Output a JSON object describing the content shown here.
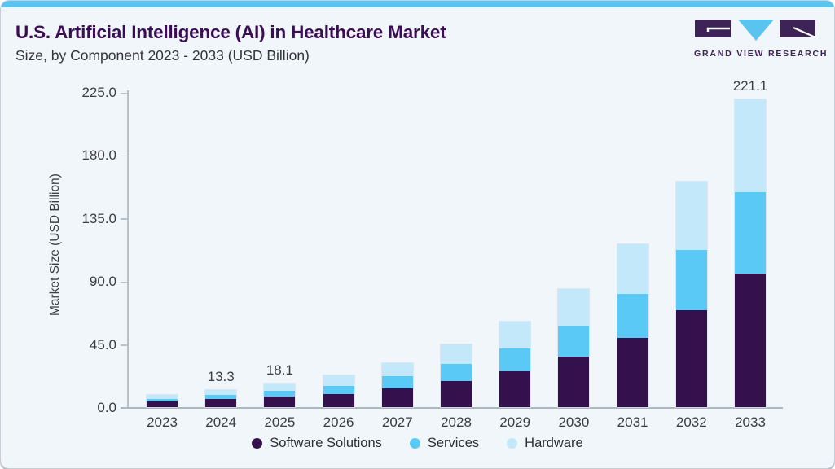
{
  "header": {
    "title": "U.S. Artificial Intelligence (AI) in Healthcare Market",
    "subtitle": "Size, by Component 2023 - 2033 (USD Billion)",
    "logo_wordmark": "GRAND VIEW RESEARCH"
  },
  "colors": {
    "accent_strip": "#58c4ef",
    "title_text": "#3a0d55",
    "card_background": "#f1f6fa",
    "software_solutions": "#34114d",
    "services": "#5bc9f5",
    "hardware": "#c2e8fa",
    "logo_purple": "#3d2356",
    "logo_blue": "#58c4ef"
  },
  "chart_data": {
    "type": "bar",
    "stacked": true,
    "title": "U.S. Artificial Intelligence (AI) in Healthcare Market Size, by Component 2023 - 2033 (USD Billion)",
    "xlabel": "",
    "ylabel": "Market Size (USD Billion)",
    "ylim": [
      0,
      225
    ],
    "ytick_labels": [
      "0.0",
      "45.0",
      "90.0",
      "135.0",
      "180.0",
      "225.0"
    ],
    "grid": false,
    "legend_position": "bottom",
    "categories": [
      "2023",
      "2024",
      "2025",
      "2026",
      "2027",
      "2028",
      "2029",
      "2030",
      "2031",
      "2032",
      "2033"
    ],
    "series": [
      {
        "name": "Software Solutions",
        "color": "#34114d",
        "values": [
          4.3,
          6.2,
          8.3,
          9.8,
          14.1,
          19.1,
          26.3,
          36.6,
          50.1,
          69.6,
          95.7
        ]
      },
      {
        "name": "Services",
        "color": "#5bc9f5",
        "values": [
          2.6,
          3.1,
          4.2,
          6.2,
          8.8,
          12.4,
          16.2,
          22.4,
          31.7,
          43.3,
          58.6
        ]
      },
      {
        "name": "Hardware",
        "color": "#c2e8fa",
        "values": [
          2.9,
          4.0,
          5.6,
          8.0,
          9.7,
          14.2,
          19.9,
          26.7,
          35.7,
          49.1,
          66.8
        ]
      }
    ],
    "visible_total_labels": {
      "2024": "13.3",
      "2025": "18.1",
      "2033": "221.1"
    }
  }
}
